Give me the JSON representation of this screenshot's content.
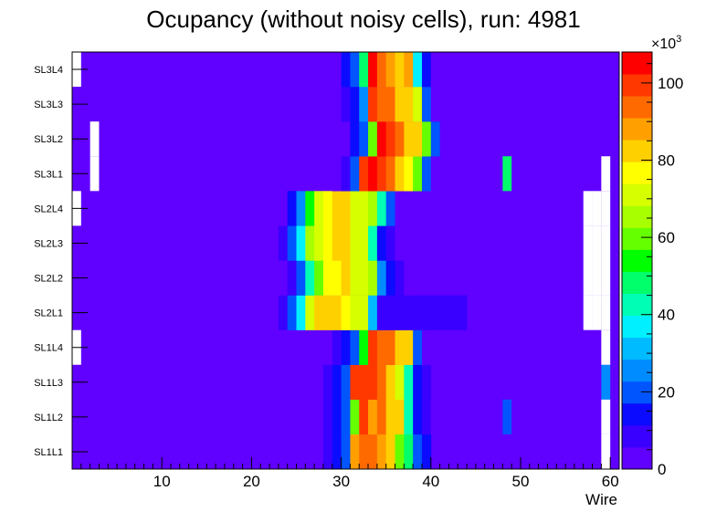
{
  "chart_data": {
    "type": "heatmap",
    "title": "Ocupancy (without noisy cells), run: 4981",
    "xlabel": "Wire",
    "ylabel": "",
    "xlim": [
      0,
      61
    ],
    "x_ticks": [
      10,
      20,
      30,
      40,
      50,
      60
    ],
    "y_categories": [
      "SL1L1",
      "SL1L2",
      "SL1L3",
      "SL1L4",
      "SL2L1",
      "SL2L2",
      "SL2L3",
      "SL2L4",
      "SL3L1",
      "SL3L2",
      "SL3L3",
      "SL3L4"
    ],
    "colorbar": {
      "min": 0,
      "max": 108,
      "ticks": [
        0,
        20,
        40,
        60,
        80,
        100
      ],
      "exponent_label": "×10",
      "exponent_power": "3",
      "palette": [
        "#6000ff",
        "#3a00ff",
        "#0b0bff",
        "#0055ff",
        "#008cff",
        "#00bbff",
        "#00f0ff",
        "#00ffb4",
        "#00ff6a",
        "#00ff00",
        "#66ff00",
        "#a8ff00",
        "#d6ff00",
        "#ffff00",
        "#ffd000",
        "#ffa000",
        "#ff6a00",
        "#ff3800",
        "#ff0000"
      ]
    },
    "colors": {
      "background_fill": "#6000ff",
      "empty_cell": "#ffffff",
      "frame": "#000000"
    },
    "empty_cells": [
      {
        "row": "SL3L4",
        "wires": [
          1
        ]
      },
      {
        "row": "SL3L2",
        "wires": [
          3
        ]
      },
      {
        "row": "SL3L1",
        "wires": [
          3,
          60
        ]
      },
      {
        "row": "SL2L4",
        "wires": [
          1,
          58,
          59,
          60
        ]
      },
      {
        "row": "SL2L3",
        "wires": [
          58,
          59,
          60
        ]
      },
      {
        "row": "SL2L2",
        "wires": [
          58,
          59,
          60
        ]
      },
      {
        "row": "SL2L1",
        "wires": [
          58,
          59,
          60
        ]
      },
      {
        "row": "SL1L4",
        "wires": [
          1,
          60
        ]
      },
      {
        "row": "SL1L3",
        "wires": []
      },
      {
        "row": "SL1L2",
        "wires": [
          60
        ]
      },
      {
        "row": "SL1L1",
        "wires": [
          60
        ]
      }
    ],
    "rows": {
      "SL3L4": {
        "start": 30,
        "values": [
          5,
          12,
          18,
          50,
          108,
          95,
          88,
          80,
          90,
          35,
          15,
          5
        ]
      },
      "SL3L3": {
        "start": 30,
        "values": [
          5,
          8,
          14,
          25,
          100,
          94,
          92,
          85,
          82,
          70,
          18,
          5
        ]
      },
      "SL3L2": {
        "start": 31,
        "values": [
          5,
          12,
          20,
          60,
          108,
          100,
          92,
          85,
          82,
          60,
          18,
          5
        ]
      },
      "SL3L1": {
        "start": 30,
        "values": [
          5,
          10,
          22,
          100,
          108,
          100,
          92,
          85,
          75,
          60,
          18,
          5
        ]
      },
      "SL2L4": {
        "start": 24,
        "values": [
          5,
          12,
          25,
          55,
          70,
          78,
          82,
          82,
          70,
          70,
          65,
          40,
          20,
          5
        ]
      },
      "SL2L3": {
        "start": 23,
        "values": [
          5,
          10,
          18,
          35,
          66,
          72,
          78,
          82,
          82,
          70,
          70,
          40,
          12,
          8,
          5
        ]
      },
      "SL2L2": {
        "start": 24,
        "values": [
          5,
          10,
          20,
          45,
          60,
          75,
          78,
          82,
          70,
          70,
          65,
          25,
          12,
          8,
          5
        ]
      },
      "SL2L1": {
        "start": 23,
        "values": [
          5,
          10,
          18,
          35,
          70,
          82,
          85,
          85,
          75,
          70,
          70,
          30,
          10,
          10,
          10,
          10,
          10,
          10,
          10,
          10,
          10,
          10
        ]
      },
      "SL1L4": {
        "start": 29,
        "values": [
          5,
          10,
          15,
          22,
          55,
          100,
          95,
          95,
          85,
          80,
          20,
          5
        ]
      },
      "SL1L3": {
        "start": 28,
        "values": [
          5,
          10,
          15,
          22,
          100,
          100,
          100,
          92,
          85,
          70,
          40,
          12,
          8
        ]
      },
      "SL1L2": {
        "start": 28,
        "values": [
          5,
          10,
          15,
          22,
          60,
          100,
          90,
          92,
          85,
          80,
          40,
          12,
          8,
          5
        ]
      },
      "SL1L1": {
        "start": 28,
        "values": [
          5,
          10,
          15,
          22,
          88,
          92,
          95,
          90,
          84,
          62,
          48,
          18,
          12
        ]
      }
    },
    "extra_cells": [
      {
        "row": "SL3L1",
        "wire": 49,
        "value": 50
      },
      {
        "row": "SL1L3",
        "wire": 60,
        "value": 28
      },
      {
        "row": "SL1L2",
        "wire": 49,
        "value": 22
      }
    ],
    "grid": false,
    "legend": "none",
    "colorbar_position": "right"
  }
}
